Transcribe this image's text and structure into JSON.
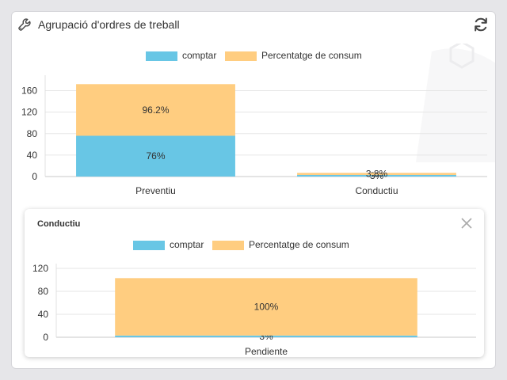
{
  "widget": {
    "title": "Agrupació d'ordres de treball",
    "title_icon": "wrench-icon",
    "refresh_icon": "refresh-icon"
  },
  "legend": [
    {
      "label": "comptar",
      "color": "#68c6e5"
    },
    {
      "label": "Percentatge de consum",
      "color": "#ffcd80"
    }
  ],
  "popup": {
    "title": "Conductiu",
    "close_icon": "close-icon"
  },
  "chart_data": [
    {
      "type": "bar",
      "stacked": true,
      "categories": [
        "Preventiu",
        "Conductiu"
      ],
      "series": [
        {
          "name": "comptar",
          "values": [
            76,
            3
          ],
          "labels": [
            "76%",
            "3%"
          ],
          "color": "#68c6e5"
        },
        {
          "name": "Percentatge de consum",
          "values": [
            96.2,
            3.8
          ],
          "labels": [
            "96.2%",
            "3.8%"
          ],
          "color": "#ffcd80"
        }
      ],
      "yticks": [
        0,
        40,
        80,
        120,
        160
      ],
      "ylim": [
        0,
        180
      ],
      "grid": true,
      "legend": "top"
    },
    {
      "type": "bar",
      "stacked": true,
      "categories": [
        "Pendiente"
      ],
      "series": [
        {
          "name": "comptar",
          "values": [
            3
          ],
          "labels": [
            "3%"
          ],
          "color": "#68c6e5"
        },
        {
          "name": "Percentatge de consum",
          "values": [
            100
          ],
          "labels": [
            "100%"
          ],
          "color": "#ffcd80"
        }
      ],
      "yticks": [
        0,
        40,
        80,
        120
      ],
      "ylim": [
        0,
        120
      ],
      "grid": true,
      "legend": "top"
    }
  ]
}
